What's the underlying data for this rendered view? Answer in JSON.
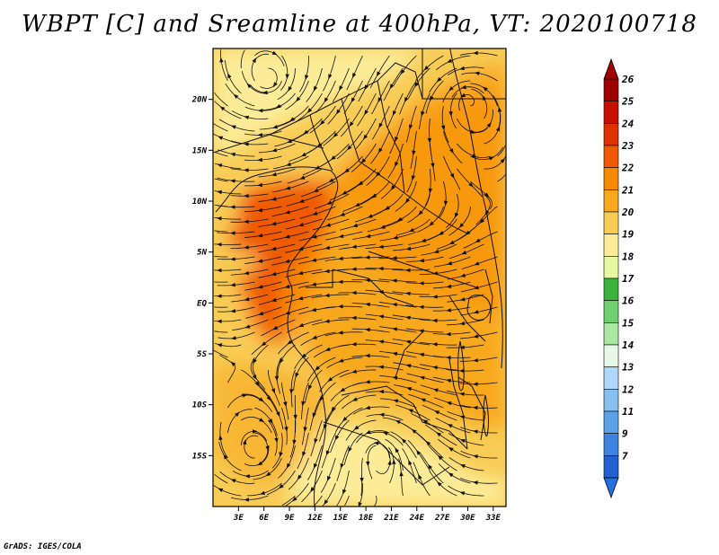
{
  "title": "WBPT [C] and Sreamline at 400hPa, VT: 2020100718",
  "credit": "GrADS: IGES/COLA",
  "map": {
    "lat_ticks": [
      "20N",
      "15N",
      "10N",
      "5N",
      "EQ",
      "5S",
      "10S",
      "15S"
    ],
    "lon_ticks": [
      "3E",
      "6E",
      "9E",
      "12E",
      "15E",
      "18E",
      "21E",
      "24E",
      "27E",
      "30E",
      "33E"
    ],
    "lat_values": [
      20,
      15,
      10,
      5,
      0,
      -5,
      -10,
      -15
    ],
    "lon_values": [
      3,
      6,
      9,
      12,
      15,
      18,
      21,
      24,
      27,
      30,
      33
    ],
    "lon_range": [
      0,
      34.5
    ],
    "lat_range": [
      -20,
      25
    ]
  },
  "colorbar": {
    "labels": [
      "26",
      "25",
      "24",
      "23",
      "22",
      "21",
      "20",
      "19",
      "18",
      "17",
      "16",
      "15",
      "14",
      "13",
      "12",
      "11",
      "9",
      "7"
    ],
    "colors": [
      "#a00000",
      "#c81000",
      "#e03200",
      "#f05a00",
      "#f88a00",
      "#f8a81c",
      "#f8cc55",
      "#fcec98",
      "#e8f8a0",
      "#3cb43c",
      "#70d070",
      "#a8e8a0",
      "#e8f8e8",
      "#b0d8f8",
      "#88c0f0",
      "#5ca0e8",
      "#3c84e0",
      "#2060d0"
    ],
    "arrow_top_color": "#a00000",
    "arrow_bottom_color": "#2070e0"
  },
  "field_colors": {
    "c19": "#fcec98",
    "c20": "#f8cc55",
    "c21": "#f8a81c",
    "c22": "#f88a00",
    "c23": "#f05a00"
  }
}
